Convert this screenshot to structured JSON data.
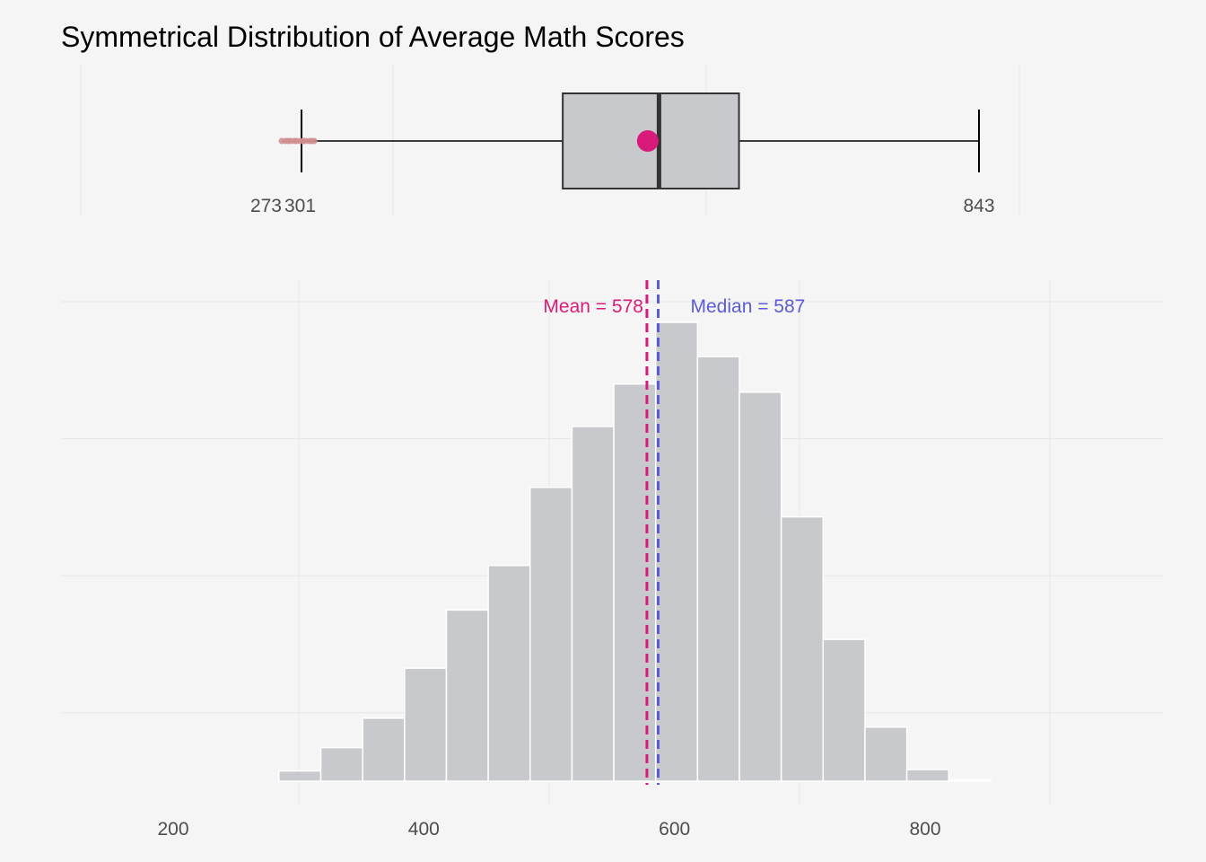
{
  "chart_data": {
    "type": "bar",
    "title": "Symmetrical Distribution of Average Math Scores",
    "xlabel": "",
    "ylabel": "",
    "grid": true,
    "colors": {
      "background": "#f5f5f5",
      "bar_fill": "#c8c9cd",
      "bar_stroke": "#ffffff",
      "mean": "#d81b7a",
      "median": "#5b5bd6",
      "outlier": "#d08c8c",
      "whisker": "#000000",
      "grid": "#e6e6e6"
    },
    "boxplot": {
      "whisker_low": 301,
      "q1": 510,
      "median": 587,
      "q3": 651,
      "whisker_high": 843,
      "mean": 578,
      "min_outlier": 273,
      "outliers": [
        273,
        276,
        278,
        280,
        283,
        285,
        288,
        290,
        292,
        295,
        297,
        299
      ],
      "labels": {
        "low_outlier": "273",
        "whisker_low": "301",
        "whisker_high": "843"
      }
    },
    "histogram": {
      "bin_width": 33.4,
      "bins": [
        {
          "start": 284.4,
          "end": 317.8,
          "count": 15
        },
        {
          "start": 317.8,
          "end": 351.2,
          "count": 49
        },
        {
          "start": 351.2,
          "end": 384.6,
          "count": 92
        },
        {
          "start": 384.6,
          "end": 418.0,
          "count": 165
        },
        {
          "start": 418.0,
          "end": 451.4,
          "count": 250
        },
        {
          "start": 451.4,
          "end": 484.8,
          "count": 315
        },
        {
          "start": 484.8,
          "end": 518.2,
          "count": 429
        },
        {
          "start": 518.2,
          "end": 551.6,
          "count": 518
        },
        {
          "start": 551.6,
          "end": 585.0,
          "count": 580
        },
        {
          "start": 585.0,
          "end": 618.4,
          "count": 670
        },
        {
          "start": 618.4,
          "end": 651.8,
          "count": 620
        },
        {
          "start": 651.8,
          "end": 685.2,
          "count": 568
        },
        {
          "start": 685.2,
          "end": 718.6,
          "count": 386
        },
        {
          "start": 718.6,
          "end": 752.0,
          "count": 207
        },
        {
          "start": 752.0,
          "end": 785.4,
          "count": 79
        },
        {
          "start": 785.4,
          "end": 818.8,
          "count": 17
        },
        {
          "start": 818.8,
          "end": 852.2,
          "count": 2
        }
      ],
      "ylim": [
        0,
        700
      ],
      "y_gridlines": [
        100,
        300,
        500,
        700
      ],
      "mean_label": "Mean = 578",
      "median_label": "Median = 587"
    },
    "x_ticks": [
      200,
      400,
      600,
      800
    ],
    "xlim": [
      100,
      1000
    ]
  }
}
